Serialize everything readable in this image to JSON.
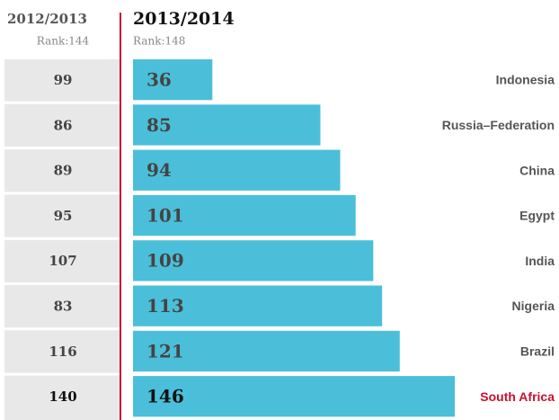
{
  "chart_data": {
    "type": "bar",
    "orientation": "horizontal",
    "title": "2013/2014",
    "subtitle": "Rank:148",
    "previous": {
      "title": "2012/2013",
      "subtitle": "Rank:144",
      "values": [
        99,
        86,
        89,
        95,
        107,
        83,
        116,
        140
      ]
    },
    "categories": [
      "Indonesia",
      "Russia–Federation",
      "China",
      "Egypt",
      "India",
      "Nigeria",
      "Brazil",
      "South Africa"
    ],
    "values": [
      36,
      85,
      94,
      101,
      109,
      113,
      121,
      146
    ],
    "color": "#4bbfd9",
    "label_colors": [
      "#555555",
      "#555555",
      "#555555",
      "#555555",
      "#555555",
      "#555555",
      "#555555",
      "#c8102e"
    ],
    "value_colors": [
      "#444444",
      "#444444",
      "#444444",
      "#444444",
      "#444444",
      "#444444",
      "#444444",
      "#111111"
    ],
    "xlim": [
      0,
      148
    ]
  }
}
